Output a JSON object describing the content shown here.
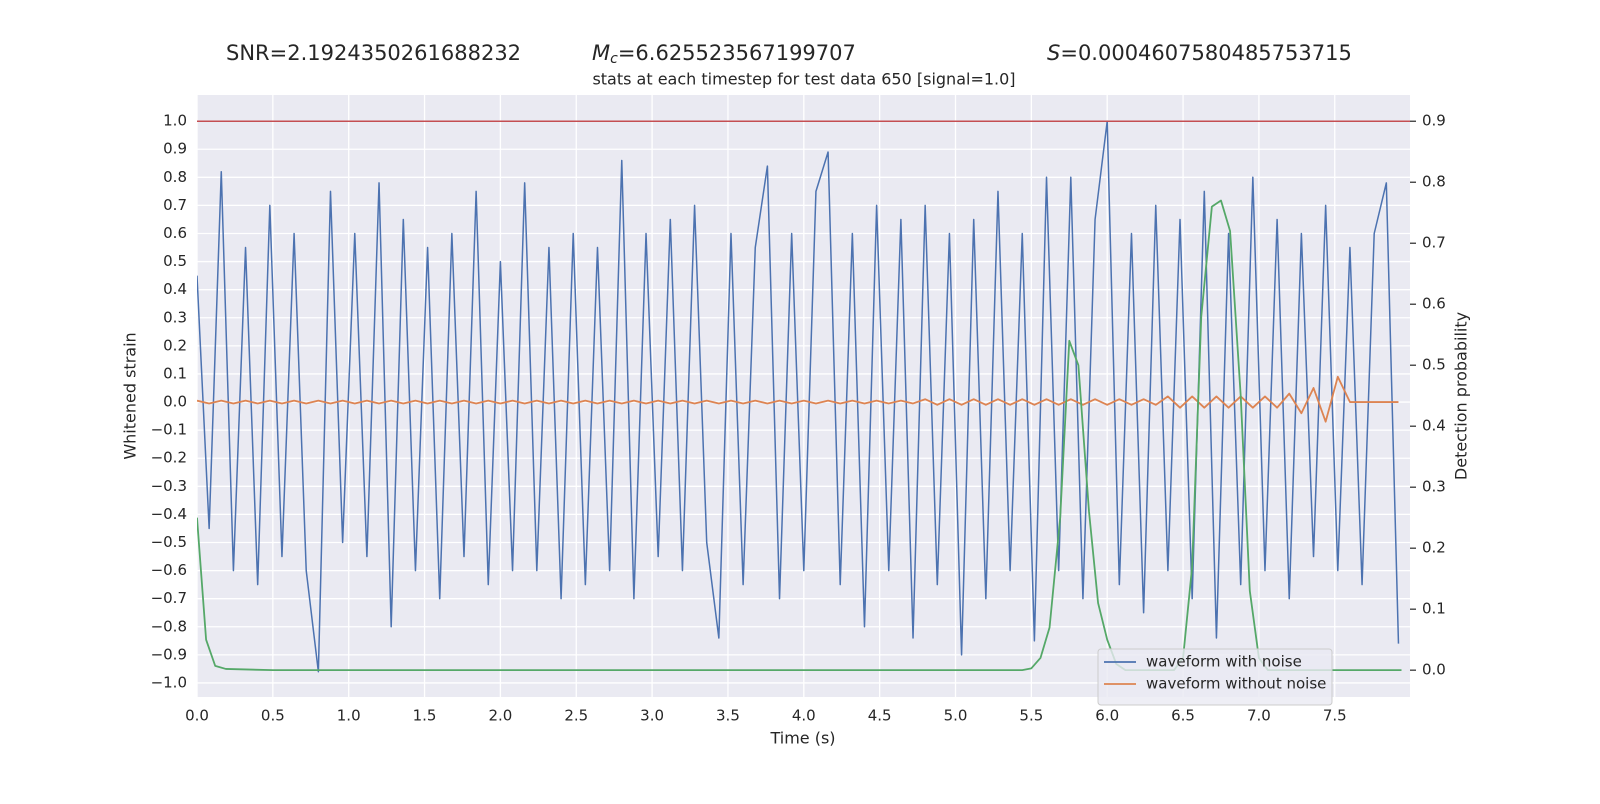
{
  "chart_data": {
    "type": "line",
    "titles": [
      {
        "text": "SNR=2.1924350261688232"
      },
      {
        "symbol": "M",
        "subscript": "c",
        "text": "=6.625523567199707"
      },
      {
        "symbol": "S",
        "text": "=0.0004607580485753715"
      }
    ],
    "subtitle": "stats at each timestep for test data 650 [signal=1.0]",
    "x_label": "Time (s)",
    "y_label": "Whitened strain",
    "y2_label": "Detection probability",
    "grid": true,
    "background": "#eaeaf2",
    "legend": "lower right",
    "xlim": [
      0,
      7.996
    ],
    "ylim": [
      -1.05,
      1.093
    ],
    "y2lim": [
      -0.044,
      0.943
    ],
    "xticks": [
      {
        "value": 0,
        "label": "0.0"
      },
      0.5,
      {
        "value": 1,
        "label": "1.0"
      },
      1.5,
      {
        "value": 2,
        "label": "2.0"
      },
      2.5,
      {
        "value": 3,
        "label": "3.0"
      },
      3.5,
      {
        "value": 4,
        "label": "4.0"
      },
      4.5,
      {
        "value": 5,
        "label": "5.0"
      },
      5.5,
      {
        "value": 6,
        "label": "6.0"
      },
      6.5,
      {
        "value": 7,
        "label": "7.0"
      },
      7.5
    ],
    "yticks": [
      {
        "value": -1,
        "label": "−1.0"
      },
      {
        "value": -0.9,
        "label": "−0.9"
      },
      {
        "value": -0.8,
        "label": "−0.8"
      },
      {
        "value": -0.7,
        "label": "−0.7"
      },
      {
        "value": -0.6,
        "label": "−0.6"
      },
      {
        "value": -0.5,
        "label": "−0.5"
      },
      {
        "value": -0.4,
        "label": "−0.4"
      },
      {
        "value": -0.3,
        "label": "−0.3"
      },
      {
        "value": -0.2,
        "label": "−0.2"
      },
      {
        "value": -0.1,
        "label": "−0.1"
      },
      {
        "value": 0,
        "label": "0.0"
      },
      0.1,
      0.2,
      0.3,
      0.4,
      0.5,
      0.6,
      0.7,
      0.8,
      0.9,
      {
        "value": 1,
        "label": "1.0"
      }
    ],
    "y2ticks": [
      {
        "value": 0,
        "label": "0.0"
      },
      0.1,
      0.2,
      0.3,
      0.4,
      0.5,
      0.6,
      0.7,
      0.8,
      0.9
    ],
    "hline": {
      "value": 0.9,
      "axis": "y2",
      "color": "#c44e52"
    },
    "x": [
      0,
      0.08,
      0.16,
      0.24,
      0.32,
      0.4,
      0.48,
      0.56,
      0.64,
      0.72,
      0.8,
      0.88,
      0.96,
      1.04,
      1.12,
      1.2,
      1.28,
      1.36,
      1.44,
      1.52,
      1.6,
      1.68,
      1.76,
      1.84,
      1.92,
      2,
      2.08,
      2.16,
      2.24,
      2.32,
      2.4,
      2.48,
      2.56,
      2.64,
      2.72,
      2.8,
      2.88,
      2.96,
      3.04,
      3.12,
      3.2,
      3.28,
      3.36,
      3.44,
      3.52,
      3.6,
      3.68,
      3.76,
      3.84,
      3.92,
      4,
      4.08,
      4.16,
      4.24,
      4.32,
      4.4,
      4.48,
      4.56,
      4.64,
      4.72,
      4.8,
      4.88,
      4.96,
      5.04,
      5.12,
      5.2,
      5.28,
      5.36,
      5.44,
      5.52,
      5.6,
      5.68,
      5.76,
      5.84,
      5.92,
      6,
      6.08,
      6.16,
      6.24,
      6.32,
      6.4,
      6.48,
      6.56,
      6.64,
      6.72,
      6.8,
      6.88,
      6.96,
      7.04,
      7.12,
      7.2,
      7.28,
      7.36,
      7.44,
      7.52,
      7.6,
      7.68,
      7.76,
      7.84,
      7.92
    ],
    "series": [
      {
        "name": "waveform with noise",
        "color": "#4c72b0",
        "values": [
          0.45,
          -0.45,
          0.82,
          -0.6,
          0.55,
          -0.65,
          0.7,
          -0.55,
          0.6,
          -0.6,
          -0.96,
          0.75,
          -0.5,
          0.6,
          -0.55,
          0.78,
          -0.8,
          0.65,
          -0.6,
          0.55,
          -0.7,
          0.6,
          -0.55,
          0.75,
          -0.65,
          0.5,
          -0.6,
          0.78,
          -0.6,
          0.55,
          -0.7,
          0.6,
          -0.65,
          0.55,
          -0.6,
          0.86,
          -0.7,
          0.6,
          -0.55,
          0.65,
          -0.6,
          0.7,
          -0.5,
          -0.84,
          0.6,
          -0.65,
          0.55,
          0.84,
          -0.7,
          0.6,
          -0.6,
          0.75,
          0.89,
          -0.65,
          0.6,
          -0.8,
          0.7,
          -0.6,
          0.65,
          -0.84,
          0.7,
          -0.65,
          0.6,
          -0.9,
          0.65,
          -0.7,
          0.75,
          -0.6,
          0.6,
          -0.85,
          0.8,
          -0.6,
          0.8,
          -0.7,
          0.65,
          1.0,
          -0.65,
          0.6,
          -0.75,
          0.7,
          -0.6,
          0.65,
          -0.7,
          0.75,
          -0.84,
          0.6,
          -0.65,
          0.8,
          -0.6,
          0.65,
          -0.7,
          0.6,
          -0.55,
          0.7,
          -0.6,
          0.55,
          -0.65,
          0.6,
          0.78,
          -0.86
        ]
      },
      {
        "name": "waveform without noise",
        "color": "#dd8452",
        "values": [
          0.005,
          -0.005,
          0.005,
          -0.005,
          0.005,
          -0.005,
          0.005,
          -0.005,
          0.005,
          -0.005,
          0.005,
          -0.005,
          0.005,
          -0.005,
          0.005,
          -0.005,
          0.005,
          -0.005,
          0.005,
          -0.005,
          0.005,
          -0.005,
          0.005,
          -0.005,
          0.005,
          -0.005,
          0.005,
          -0.005,
          0.005,
          -0.005,
          0.005,
          -0.005,
          0.005,
          -0.005,
          0.005,
          -0.005,
          0.005,
          -0.005,
          0.005,
          -0.005,
          0.005,
          -0.005,
          0.005,
          -0.005,
          0.005,
          -0.005,
          0.005,
          -0.005,
          0.005,
          -0.005,
          0.005,
          -0.005,
          0.005,
          -0.005,
          0.005,
          -0.005,
          0.005,
          -0.005,
          0.005,
          -0.005,
          0.01,
          -0.01,
          0.01,
          -0.01,
          0.01,
          -0.01,
          0.01,
          -0.01,
          0.01,
          -0.01,
          0.01,
          -0.01,
          0.01,
          -0.01,
          0.01,
          -0.01,
          0.01,
          -0.01,
          0.01,
          -0.01,
          0.02,
          -0.02,
          0.02,
          -0.02,
          0.02,
          -0.02,
          0.02,
          -0.02,
          0.02,
          -0.02,
          0.03,
          -0.04,
          0.05,
          -0.07,
          0.09,
          0,
          0,
          0,
          0,
          0
        ]
      },
      {
        "color": "#55a868",
        "axis": "y2",
        "x": [
          0,
          0.06,
          0.12,
          0.19,
          0.5,
          5.44,
          5.5,
          5.56,
          5.62,
          5.69,
          5.75,
          5.81,
          5.88,
          5.94,
          6,
          6.06,
          6.12,
          6.44,
          6.5,
          6.56,
          6.62,
          6.69,
          6.75,
          6.81,
          6.88,
          6.94,
          7,
          7.06,
          7.94
        ],
        "values": [
          0.25,
          0.05,
          0.007,
          0.002,
          0,
          0,
          0.003,
          0.02,
          0.07,
          0.25,
          0.54,
          0.5,
          0.26,
          0.11,
          0.05,
          0.01,
          0,
          0,
          0.02,
          0.17,
          0.58,
          0.76,
          0.77,
          0.72,
          0.45,
          0.13,
          0.02,
          0,
          0
        ]
      }
    ]
  }
}
